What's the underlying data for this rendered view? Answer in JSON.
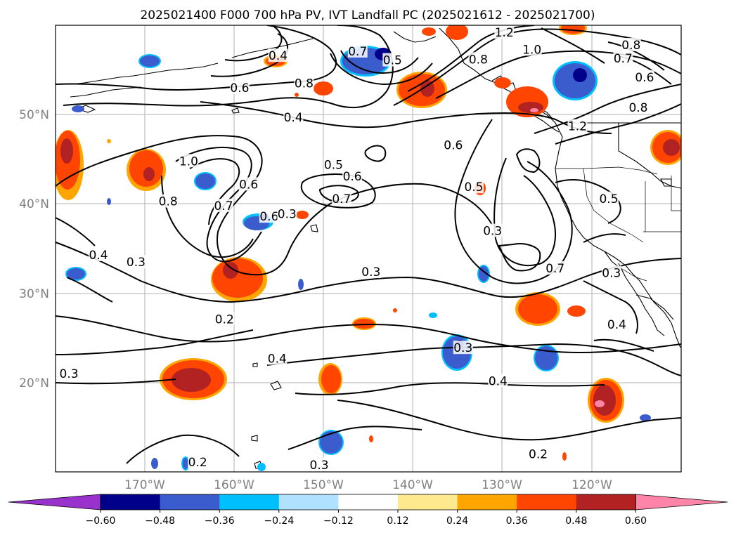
{
  "title": "2025021400 F000 700 hPa PV, IVT Landfall PC (2025021612 - 2025021700)",
  "lat_labels": [
    "50°N",
    "40°N",
    "30°N",
    "20°N"
  ],
  "lon_labels": [
    "170°W",
    "160°W",
    "150°W",
    "140°W",
    "130°W",
    "120°W"
  ],
  "colorbar": {
    "ticks": [
      "−0.60",
      "−0.48",
      "−0.36",
      "−0.24",
      "−0.12",
      "0.12",
      "0.24",
      "0.36",
      "0.48",
      "0.60"
    ],
    "colors": [
      "#9932cc",
      "#00008b",
      "#3a5ccc",
      "#00bfff",
      "#b0e2ff",
      "#ffffff",
      "#ffe98f",
      "#ffa500",
      "#ff4500",
      "#b22222",
      "#ff85a8"
    ]
  },
  "contour_labels": [
    {
      "text": "1.2",
      "lon": -129.8,
      "lat": 59.2
    },
    {
      "text": "1.0",
      "lon": -126.7,
      "lat": 57.3
    },
    {
      "text": "0.8",
      "lon": -115.6,
      "lat": 57.8
    },
    {
      "text": "0.7",
      "lon": -116.5,
      "lat": 56.3
    },
    {
      "text": "0.6",
      "lon": -114.1,
      "lat": 54.2
    },
    {
      "text": "0.8",
      "lon": -114.8,
      "lat": 50.8
    },
    {
      "text": "1.2",
      "lon": -121.6,
      "lat": 48.7
    },
    {
      "text": "0.8",
      "lon": -132.7,
      "lat": 56.2
    },
    {
      "text": "0.7",
      "lon": -146.2,
      "lat": 57.1
    },
    {
      "text": "0.5",
      "lon": -142.3,
      "lat": 56.1
    },
    {
      "text": "0.6",
      "lon": -159.4,
      "lat": 53.0
    },
    {
      "text": "0.4",
      "lon": -153.4,
      "lat": 49.7
    },
    {
      "text": "0.4",
      "lon": -155.1,
      "lat": 56.6
    },
    {
      "text": "0.8",
      "lon": -152.2,
      "lat": 53.5
    },
    {
      "text": "1.0",
      "lon": -165.1,
      "lat": 44.8
    },
    {
      "text": "0.8",
      "lon": -167.4,
      "lat": 40.3
    },
    {
      "text": "0.7",
      "lon": -161.2,
      "lat": 39.8
    },
    {
      "text": "0.6",
      "lon": -158.4,
      "lat": 42.2
    },
    {
      "text": "0.6",
      "lon": -156.1,
      "lat": 38.6
    },
    {
      "text": "0.3",
      "lon": -154.1,
      "lat": 38.9
    },
    {
      "text": "0.5",
      "lon": -148.9,
      "lat": 44.4
    },
    {
      "text": "0.6",
      "lon": -146.8,
      "lat": 43.1
    },
    {
      "text": "0.7",
      "lon": -148.0,
      "lat": 40.6
    },
    {
      "text": "0.6",
      "lon": -135.5,
      "lat": 46.6
    },
    {
      "text": "0.5",
      "lon": -133.2,
      "lat": 41.9
    },
    {
      "text": "0.3",
      "lon": -131.1,
      "lat": 37.0
    },
    {
      "text": "0.3",
      "lon": -144.7,
      "lat": 32.4
    },
    {
      "text": "0.4",
      "lon": -175.2,
      "lat": 34.3
    },
    {
      "text": "0.3",
      "lon": -171.0,
      "lat": 33.5
    },
    {
      "text": "0.7",
      "lon": -124.1,
      "lat": 32.8
    },
    {
      "text": "0.5",
      "lon": -118.1,
      "lat": 40.6
    },
    {
      "text": "0.3",
      "lon": -117.8,
      "lat": 32.3
    },
    {
      "text": "0.4",
      "lon": -117.2,
      "lat": 26.5
    },
    {
      "text": "0.3",
      "lon": -134.4,
      "lat": 23.9
    },
    {
      "text": "0.4",
      "lon": -130.5,
      "lat": 20.2
    },
    {
      "text": "0.2",
      "lon": -161.1,
      "lat": 27.1
    },
    {
      "text": "0.3",
      "lon": -178.5,
      "lat": 21.0
    },
    {
      "text": "0.2",
      "lon": -164.1,
      "lat": 11.1
    },
    {
      "text": "0.3",
      "lon": -150.5,
      "lat": 10.8
    },
    {
      "text": "0.2",
      "lon": -126.0,
      "lat": 12.0
    },
    {
      "text": "0.4",
      "lon": -155.2,
      "lat": 22.7
    }
  ]
}
